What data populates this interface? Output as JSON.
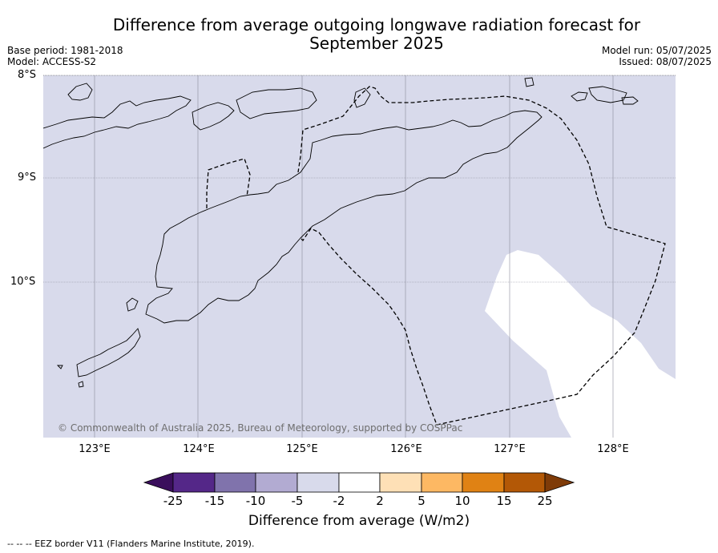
{
  "title_line1": "Difference from average outgoing longwave radiation forecast for",
  "title_line2": "September 2025",
  "base_period": "Base period: 1981-2018",
  "model": "Model: ACCESS-S2",
  "model_run": "Model run: 05/07/2025",
  "issued": "Issued: 08/07/2025",
  "latitudes": [
    "8°S",
    "9°S",
    "10°S"
  ],
  "longitudes": [
    "123°E",
    "124°E",
    "125°E",
    "126°E",
    "127°E",
    "128°E"
  ],
  "copyright": "© Commonwealth of Australia 2025, Bureau of Meteorology, supported by COSPPac",
  "colorbar": {
    "ticks": [
      "-25",
      "-15",
      "-10",
      "-5",
      "-2",
      "2",
      "5",
      "10",
      "15",
      "25"
    ],
    "colors": [
      "#3a0e5c",
      "#542788",
      "#8073ac",
      "#b2abd2",
      "#d8daeb",
      "#ffffff",
      "#fee0b6",
      "#fdb863",
      "#e08214",
      "#b35806",
      "#7f3b08"
    ],
    "label": "Difference from average (W/m2)"
  },
  "footnote": "--  --  -- EEZ border V11 (Flanders Marine Institute, 2019).",
  "map": {
    "background_color": "#d8daeb",
    "neutral_region_color": "#ffffff",
    "field_value_range": "-5 to -2",
    "neutral_region_range": "-2 to 2"
  }
}
